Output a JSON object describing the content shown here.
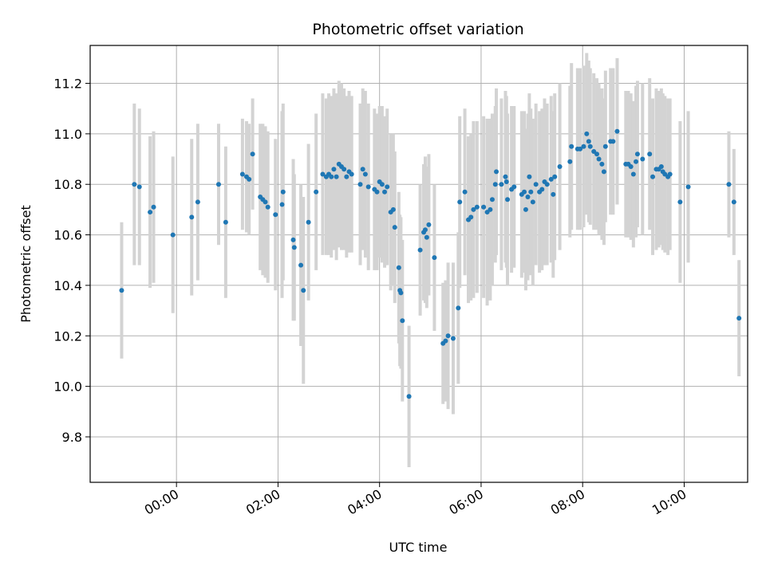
{
  "chart_data": {
    "type": "scatter",
    "title": "Photometric offset variation",
    "xlabel": "UTC time",
    "ylabel": "Photometric offset",
    "x_unit": "hours UTC",
    "xlim": [
      -1.7,
      11.25
    ],
    "ylim": [
      9.62,
      11.35
    ],
    "grid": true,
    "x_ticks": [
      {
        "value": 0,
        "label": "00:00"
      },
      {
        "value": 2,
        "label": "02:00"
      },
      {
        "value": 4,
        "label": "04:00"
      },
      {
        "value": 6,
        "label": "06:00"
      },
      {
        "value": 8,
        "label": "08:00"
      },
      {
        "value": 10,
        "label": "10:00"
      }
    ],
    "y_ticks": [
      {
        "value": 9.8,
        "label": "9.8"
      },
      {
        "value": 10.0,
        "label": "10.0"
      },
      {
        "value": 10.2,
        "label": "10.2"
      },
      {
        "value": 10.4,
        "label": "10.4"
      },
      {
        "value": 10.6,
        "label": "10.6"
      },
      {
        "value": 10.8,
        "label": "10.8"
      },
      {
        "value": 11.0,
        "label": "11.0"
      },
      {
        "value": 11.2,
        "label": "11.2"
      }
    ],
    "colors": {
      "points": "#1f77b4",
      "errorbars": "#d3d3d3",
      "grid": "#b0b0b0"
    },
    "points": [
      [
        -1.08,
        10.38,
        0.27
      ],
      [
        -0.83,
        10.8,
        0.32
      ],
      [
        -0.73,
        10.79,
        0.31
      ],
      [
        -0.52,
        10.69,
        0.3
      ],
      [
        -0.45,
        10.71,
        0.3
      ],
      [
        -0.07,
        10.6,
        0.31
      ],
      [
        0.3,
        10.67,
        0.31
      ],
      [
        0.42,
        10.73,
        0.31
      ],
      [
        0.83,
        10.8,
        0.24
      ],
      [
        0.97,
        10.65,
        0.3
      ],
      [
        1.3,
        10.84,
        0.22
      ],
      [
        1.38,
        10.83,
        0.22
      ],
      [
        1.43,
        10.82,
        0.22
      ],
      [
        1.5,
        10.92,
        0.22
      ],
      [
        1.65,
        10.75,
        0.29
      ],
      [
        1.7,
        10.74,
        0.3
      ],
      [
        1.75,
        10.73,
        0.3
      ],
      [
        1.8,
        10.71,
        0.3
      ],
      [
        1.95,
        10.68,
        0.3
      ],
      [
        2.08,
        10.72,
        0.37
      ],
      [
        2.1,
        10.77,
        0.35
      ],
      [
        2.3,
        10.58,
        0.32
      ],
      [
        2.32,
        10.55,
        0.29
      ],
      [
        2.45,
        10.48,
        0.32
      ],
      [
        2.5,
        10.38,
        0.37
      ],
      [
        2.6,
        10.65,
        0.31
      ],
      [
        2.75,
        10.77,
        0.31
      ],
      [
        2.88,
        10.84,
        0.32
      ],
      [
        2.95,
        10.83,
        0.31
      ],
      [
        3.0,
        10.84,
        0.32
      ],
      [
        3.05,
        10.83,
        0.32
      ],
      [
        3.1,
        10.86,
        0.32
      ],
      [
        3.15,
        10.83,
        0.33
      ],
      [
        3.2,
        10.88,
        0.33
      ],
      [
        3.25,
        10.87,
        0.33
      ],
      [
        3.3,
        10.86,
        0.32
      ],
      [
        3.35,
        10.83,
        0.32
      ],
      [
        3.4,
        10.85,
        0.32
      ],
      [
        3.45,
        10.84,
        0.31
      ],
      [
        3.62,
        10.8,
        0.32
      ],
      [
        3.67,
        10.86,
        0.32
      ],
      [
        3.72,
        10.84,
        0.33
      ],
      [
        3.78,
        10.79,
        0.33
      ],
      [
        3.9,
        10.78,
        0.32
      ],
      [
        3.95,
        10.77,
        0.31
      ],
      [
        4.0,
        10.81,
        0.3
      ],
      [
        4.05,
        10.8,
        0.31
      ],
      [
        4.1,
        10.77,
        0.3
      ],
      [
        4.15,
        10.79,
        0.31
      ],
      [
        4.22,
        10.69,
        0.31
      ],
      [
        4.27,
        10.7,
        0.3
      ],
      [
        4.3,
        10.63,
        0.3
      ],
      [
        4.38,
        10.47,
        0.3
      ],
      [
        4.4,
        10.38,
        0.3
      ],
      [
        4.42,
        10.37,
        0.3
      ],
      [
        4.45,
        10.26,
        0.32
      ],
      [
        4.58,
        9.96,
        0.28
      ],
      [
        4.8,
        10.54,
        0.26
      ],
      [
        4.87,
        10.61,
        0.27
      ],
      [
        4.9,
        10.62,
        0.29
      ],
      [
        4.93,
        10.59,
        0.28
      ],
      [
        4.97,
        10.64,
        0.28
      ],
      [
        5.08,
        10.51,
        0.29
      ],
      [
        5.25,
        10.17,
        0.24
      ],
      [
        5.3,
        10.18,
        0.24
      ],
      [
        5.35,
        10.2,
        0.29
      ],
      [
        5.45,
        10.19,
        0.3
      ],
      [
        5.55,
        10.31,
        0.3
      ],
      [
        5.58,
        10.73,
        0.34
      ],
      [
        5.68,
        10.77,
        0.33
      ],
      [
        5.75,
        10.66,
        0.33
      ],
      [
        5.8,
        10.67,
        0.33
      ],
      [
        5.85,
        10.7,
        0.35
      ],
      [
        5.92,
        10.71,
        0.34
      ],
      [
        6.05,
        10.71,
        0.36
      ],
      [
        6.12,
        10.69,
        0.37
      ],
      [
        6.18,
        10.7,
        0.36
      ],
      [
        6.22,
        10.74,
        0.34
      ],
      [
        6.28,
        10.8,
        0.31
      ],
      [
        6.3,
        10.85,
        0.33
      ],
      [
        6.4,
        10.8,
        0.34
      ],
      [
        6.48,
        10.83,
        0.34
      ],
      [
        6.5,
        10.81,
        0.34
      ],
      [
        6.52,
        10.74,
        0.34
      ],
      [
        6.6,
        10.78,
        0.33
      ],
      [
        6.65,
        10.79,
        0.32
      ],
      [
        6.8,
        10.76,
        0.33
      ],
      [
        6.85,
        10.77,
        0.32
      ],
      [
        6.88,
        10.7,
        0.32
      ],
      [
        6.92,
        10.75,
        0.33
      ],
      [
        6.95,
        10.83,
        0.33
      ],
      [
        6.98,
        10.77,
        0.33
      ],
      [
        7.02,
        10.73,
        0.33
      ],
      [
        7.08,
        10.8,
        0.32
      ],
      [
        7.15,
        10.77,
        0.32
      ],
      [
        7.2,
        10.78,
        0.32
      ],
      [
        7.25,
        10.81,
        0.33
      ],
      [
        7.3,
        10.8,
        0.32
      ],
      [
        7.38,
        10.82,
        0.33
      ],
      [
        7.42,
        10.76,
        0.33
      ],
      [
        7.45,
        10.83,
        0.33
      ],
      [
        7.55,
        10.87,
        0.33
      ],
      [
        7.75,
        10.89,
        0.3
      ],
      [
        7.78,
        10.95,
        0.33
      ],
      [
        7.9,
        10.94,
        0.32
      ],
      [
        7.95,
        10.94,
        0.32
      ],
      [
        8.02,
        10.95,
        0.32
      ],
      [
        8.08,
        11.0,
        0.32
      ],
      [
        8.12,
        10.97,
        0.32
      ],
      [
        8.15,
        10.95,
        0.31
      ],
      [
        8.22,
        10.93,
        0.31
      ],
      [
        8.28,
        10.92,
        0.3
      ],
      [
        8.32,
        10.9,
        0.3
      ],
      [
        8.38,
        10.88,
        0.3
      ],
      [
        8.42,
        10.85,
        0.29
      ],
      [
        8.45,
        10.95,
        0.3
      ],
      [
        8.55,
        10.97,
        0.29
      ],
      [
        8.6,
        10.97,
        0.29
      ],
      [
        8.68,
        11.01,
        0.29
      ],
      [
        8.85,
        10.88,
        0.29
      ],
      [
        8.9,
        10.88,
        0.29
      ],
      [
        8.95,
        10.87,
        0.29
      ],
      [
        9.0,
        10.84,
        0.29
      ],
      [
        9.05,
        10.89,
        0.3
      ],
      [
        9.08,
        10.92,
        0.29
      ],
      [
        9.18,
        10.9,
        0.3
      ],
      [
        9.32,
        10.92,
        0.3
      ],
      [
        9.38,
        10.83,
        0.31
      ],
      [
        9.45,
        10.86,
        0.32
      ],
      [
        9.5,
        10.86,
        0.31
      ],
      [
        9.55,
        10.87,
        0.31
      ],
      [
        9.58,
        10.85,
        0.31
      ],
      [
        9.62,
        10.84,
        0.31
      ],
      [
        9.68,
        10.83,
        0.31
      ],
      [
        9.72,
        10.84,
        0.3
      ],
      [
        9.92,
        10.73,
        0.32
      ],
      [
        10.08,
        10.79,
        0.3
      ],
      [
        10.88,
        10.8,
        0.21
      ],
      [
        10.98,
        10.73,
        0.21
      ],
      [
        11.08,
        10.27,
        0.23
      ]
    ]
  }
}
